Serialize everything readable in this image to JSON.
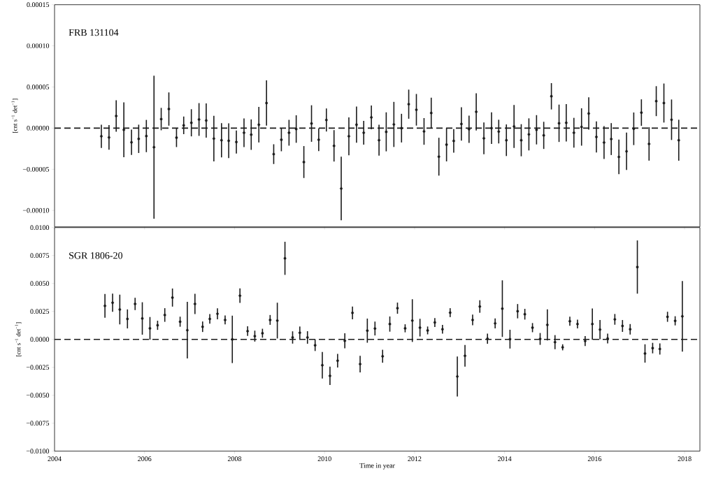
{
  "chart_data": [
    {
      "type": "scatter",
      "title": "FRB 131104",
      "ylabel": "[cnt s$^{−1}$ det$^{−1}$]",
      "marker": "circle",
      "tick_labels": "y",
      "xlim": [
        2004,
        2018.34
      ],
      "xticks": [
        2004,
        2006,
        2008,
        2010,
        2012,
        2014,
        2016,
        2018
      ],
      "ylim": [
        -0.00012,
        0.00015
      ],
      "yticks": [
        {
          "value": -0.0001,
          "label": "−0.00010"
        },
        {
          "value": -5e-05,
          "label": "−0.00005"
        },
        {
          "value": 0,
          "label": "0.00000"
        },
        {
          "value": 5e-05,
          "label": "0.00005"
        },
        {
          "value": 0.0001,
          "label": "0.00010"
        },
        {
          "value": 0.00015,
          "label": "0.00015"
        }
      ],
      "ref_lines": [
        {
          "axis": "y",
          "value": 0,
          "color": "#1a1a1a",
          "line_style": "dashed"
        }
      ],
      "x": [
        2005.04,
        2005.21,
        2005.37,
        2005.54,
        2005.71,
        2005.87,
        2006.04,
        2006.21,
        2006.37,
        2006.54,
        2006.71,
        2006.87,
        2007.04,
        2007.21,
        2007.37,
        2007.54,
        2007.71,
        2007.87,
        2008.04,
        2008.21,
        2008.37,
        2008.54,
        2008.71,
        2008.87,
        2009.04,
        2009.21,
        2009.37,
        2009.54,
        2009.71,
        2009.87,
        2010.04,
        2010.21,
        2010.37,
        2010.54,
        2010.71,
        2010.87,
        2011.04,
        2011.21,
        2011.37,
        2011.54,
        2011.71,
        2011.87,
        2012.04,
        2012.21,
        2012.37,
        2012.54,
        2012.71,
        2012.87,
        2013.04,
        2013.21,
        2013.37,
        2013.54,
        2013.71,
        2013.87,
        2014.04,
        2014.21,
        2014.37,
        2014.54,
        2014.71,
        2014.87,
        2015.04,
        2015.21,
        2015.37,
        2015.54,
        2015.71,
        2015.87,
        2016.04,
        2016.21,
        2016.37,
        2016.54,
        2016.71,
        2016.87,
        2017.04,
        2017.21,
        2017.37,
        2017.54,
        2017.71,
        2017.87
      ],
      "series": [
        {
          "color": "#1a1a1a",
          "values": [
            -9.9e-06,
            -1.13e-05,
            1.47e-05,
            -2e-06,
            -1.72e-05,
            -1.3e-05,
            -9.6e-06,
            -2.32e-05,
            1.1e-05,
            2.32e-05,
            -1.16e-05,
            3.4e-06,
            6.5e-06,
            1.05e-05,
            9.3e-06,
            -1.27e-05,
            -1.47e-05,
            -1.53e-05,
            -1.69e-05,
            -5.6e-06,
            -7.9e-06,
            4.2e-06,
            3.05e-05,
            -3.16e-05,
            -1.41e-05,
            -5.6e-06,
            -1.1e-06,
            -4.12e-05,
            5.6e-06,
            -1.41e-05,
            9.9e-06,
            -2.15e-05,
            -7.34e-05,
            -9.9e-06,
            4.2e-06,
            -5.6e-06,
            1.3e-05,
            -1.47e-05,
            -4.5e-06,
            4.5e-06,
            0.0,
            2.91e-05,
            2.23e-05,
            -4e-06,
            1.84e-05,
            -3.47e-05,
            -2.01e-05,
            -1.55e-05,
            5.1e-06,
            -1.4e-06,
            1.98e-05,
            -1.24e-05,
            0.0,
            -4.2e-06,
            -1.47e-05,
            2e-06,
            -1.47e-05,
            -7.6e-06,
            -2e-06,
            -8.8e-06,
            3.87e-05,
            5.9e-06,
            6.5e-06,
            -5.6e-06,
            1.4e-06,
            1.78e-05,
            -1.07e-05,
            -1.75e-05,
            -1.33e-05,
            -3.5e-05,
            -2.82e-05,
            -8e-07,
            1.89e-05,
            -1.92e-05,
            3.28e-05,
            3.05e-05,
            1.02e-05,
            -1.47e-05
          ],
          "errors": [
            1.41e-05,
            1.5e-05,
            1.91e-05,
            3.33e-05,
            1.54e-05,
            1.72e-05,
            1.96e-05,
            8.69e-05,
            1.36e-05,
            2.02e-05,
            1.14e-05,
            1.07e-05,
            1.65e-05,
            1.99e-05,
            2.08e-05,
            2.77e-05,
            2.08e-05,
            2.12e-05,
            1.4e-05,
            1.74e-05,
            1.85e-05,
            2.16e-05,
            2.75e-05,
            1.2e-05,
            1.4e-05,
            1.57e-05,
            1.67e-05,
            1.94e-05,
            2.22e-05,
            1.37e-05,
            1.4e-05,
            1.91e-05,
            3.86e-05,
            2.3e-05,
            2.2e-05,
            1.44e-05,
            1.44e-05,
            1.88e-05,
            2.37e-05,
            2.74e-05,
            1.74e-05,
            1.77e-05,
            1.92e-05,
            1.62e-05,
            1.86e-05,
            2.3e-05,
            2.03e-05,
            1.44e-05,
            2.02e-05,
            1.65e-05,
            2.26e-05,
            1.94e-05,
            1.92e-05,
            1.44e-05,
            1.92e-05,
            2.61e-05,
            1.95e-05,
            1.95e-05,
            1.78e-05,
            1.65e-05,
            1.6e-05,
            2.27e-05,
            2.27e-05,
            1.81e-05,
            2.27e-05,
            1.96e-05,
            1.89e-05,
            1.99e-05,
            1.94e-05,
            2.1e-05,
            2.27e-05,
            1.98e-05,
            1.61e-05,
            2.03e-05,
            1.82e-05,
            2.37e-05,
            2.46e-05,
            2.49e-05
          ]
        }
      ]
    },
    {
      "type": "scatter",
      "title": "SGR 1806-20",
      "ylabel": "[cnt s$^{−1}$ det$^{−1}$]",
      "xlabel": "Time in year",
      "marker": "circle",
      "xlim": [
        2004,
        2018.34
      ],
      "xticks": [
        2004,
        2006,
        2008,
        2010,
        2012,
        2014,
        2016,
        2018
      ],
      "ylim": [
        -0.01,
        0.01
      ],
      "yticks": [
        {
          "value": -0.01,
          "label": "−0.0100"
        },
        {
          "value": -0.0075,
          "label": "−0.0075"
        },
        {
          "value": -0.005,
          "label": "−0.0050"
        },
        {
          "value": -0.0025,
          "label": "−0.0025"
        },
        {
          "value": 0,
          "label": "0.0000"
        },
        {
          "value": 0.0025,
          "label": "0.0025"
        },
        {
          "value": 0.005,
          "label": "0.0050"
        },
        {
          "value": 0.0075,
          "label": "0.0075"
        },
        {
          "value": 0.01,
          "label": "0.0100"
        }
      ],
      "ref_lines": [
        {
          "axis": "y",
          "value": 0,
          "color": "#1a1a1a",
          "line_style": "dashed"
        }
      ],
      "x": [
        2005.12,
        2005.29,
        2005.45,
        2005.62,
        2005.79,
        2005.95,
        2006.12,
        2006.29,
        2006.45,
        2006.62,
        2006.79,
        2006.95,
        2007.12,
        2007.29,
        2007.45,
        2007.62,
        2007.79,
        2007.95,
        2008.12,
        2008.29,
        2008.45,
        2008.62,
        2008.79,
        2008.95,
        2009.12,
        2009.29,
        2009.45,
        2009.62,
        2009.79,
        2009.95,
        2010.12,
        2010.29,
        2010.45,
        2010.62,
        2010.79,
        2010.95,
        2011.12,
        2011.29,
        2011.45,
        2011.62,
        2011.79,
        2011.95,
        2012.12,
        2012.29,
        2012.45,
        2012.62,
        2012.79,
        2012.95,
        2013.12,
        2013.29,
        2013.45,
        2013.62,
        2013.79,
        2013.95,
        2014.12,
        2014.29,
        2014.45,
        2014.62,
        2014.79,
        2014.95,
        2015.12,
        2015.29,
        2015.45,
        2015.62,
        2015.79,
        2015.95,
        2016.12,
        2016.29,
        2016.45,
        2016.62,
        2016.79,
        2016.95,
        2017.12,
        2017.29,
        2017.45,
        2017.62,
        2017.79,
        2017.95
      ],
      "series": [
        {
          "color": "#1a1a1a",
          "values": [
            0.003,
            0.00328,
            0.00267,
            0.00183,
            0.00317,
            0.00187,
            0.00099,
            0.00126,
            0.00218,
            0.00374,
            0.00158,
            0.00082,
            0.00317,
            0.00113,
            0.00183,
            0.00229,
            0.00174,
            0.0,
            0.00391,
            0.00074,
            0.00029,
            0.00055,
            0.00174,
            0.00168,
            0.00725,
            0.00017,
            0.00059,
            0.00017,
            -0.00053,
            -0.00231,
            -0.00326,
            -0.00191,
            -0.00013,
            0.00237,
            -0.00221,
            0.00078,
            0.00097,
            -0.00151,
            0.00137,
            0.00279,
            0.00099,
            0.00168,
            0.00105,
            0.0008,
            0.00151,
            0.0009,
            0.00239,
            -0.00332,
            -0.00147,
            0.00174,
            0.00294,
            6e-05,
            0.00143,
            0.00275,
            2e-05,
            0.00252,
            0.00225,
            0.00105,
            4e-05,
            0.0013,
            -0.00025,
            -0.00071,
            0.00162,
            0.00137,
            -0.00015,
            0.00137,
            0.00088,
            8e-05,
            0.00179,
            0.0012,
            0.0009,
            0.00647,
            -0.00126,
            -0.00078,
            -0.00086,
            0.00202,
            0.00166,
            0.00206
          ],
          "errors": [
            0.00106,
            0.00081,
            0.00133,
            0.00085,
            0.00055,
            0.00145,
            0.00101,
            0.00041,
            0.00061,
            0.00081,
            0.00045,
            0.00253,
            0.00091,
            0.00047,
            0.00043,
            0.00049,
            0.0004,
            0.00212,
            0.00065,
            0.00043,
            0.00049,
            0.0004,
            0.00044,
            0.0016,
            0.00148,
            0.00055,
            0.00056,
            0.00056,
            0.00051,
            0.00119,
            0.00082,
            0.00061,
            0.00067,
            0.00057,
            0.00074,
            0.00108,
            0.00062,
            0.00058,
            0.00068,
            0.0005,
            0.00036,
            0.00191,
            0.00079,
            0.00035,
            0.0004,
            0.00039,
            0.0004,
            0.00179,
            0.00097,
            0.00047,
            0.00056,
            0.00046,
            0.00044,
            0.00253,
            0.00084,
            0.00064,
            0.00048,
            0.00041,
            0.00053,
            0.00139,
            0.00063,
            0.00027,
            0.00041,
            0.00039,
            0.00044,
            0.0014,
            0.00086,
            0.00044,
            0.00048,
            0.00053,
            0.00047,
            0.00238,
            0.00082,
            0.00047,
            0.0005,
            0.00045,
            0.00041,
            0.00315
          ]
        }
      ]
    }
  ]
}
